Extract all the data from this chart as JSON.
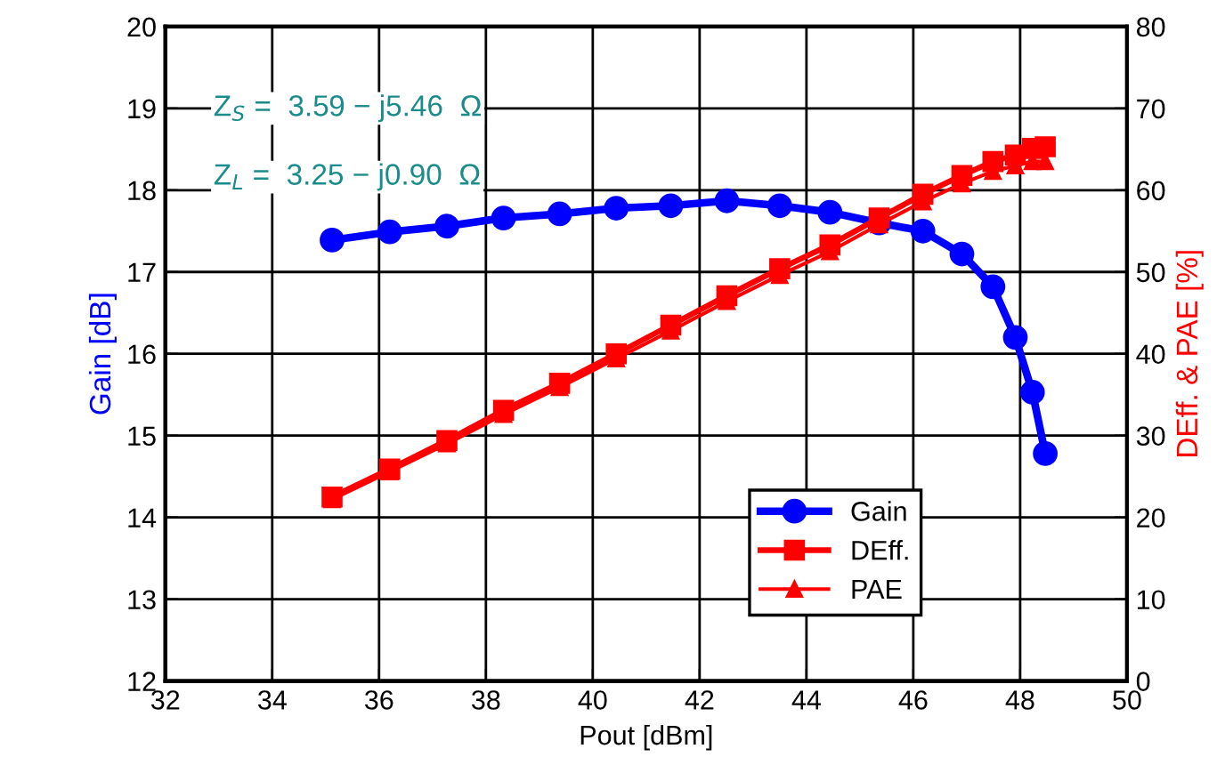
{
  "chart_data": {
    "type": "line",
    "xlabel": "Pout [dBm]",
    "ylabel": "Gain [dB]",
    "y2label": "DEff. & PAE [%]",
    "x": [
      35.12,
      36.2,
      37.27,
      38.33,
      39.38,
      40.44,
      41.46,
      42.51,
      43.5,
      44.44,
      45.36,
      46.18,
      46.91,
      47.49,
      47.91,
      48.23,
      48.47
    ],
    "series": [
      {
        "name": "Gain",
        "color": "#0000ff",
        "marker": "circle",
        "values": [
          17.39,
          17.49,
          17.56,
          17.66,
          17.71,
          17.78,
          17.81,
          17.87,
          17.81,
          17.73,
          17.6,
          17.5,
          17.22,
          16.82,
          16.2,
          15.53,
          14.78
        ]
      },
      {
        "name": "DEff.",
        "color": "#ff0000",
        "marker": "square",
        "axis": "y2",
        "values": [
          22.5,
          25.9,
          29.4,
          33.1,
          36.4,
          40.0,
          43.5,
          47.1,
          50.4,
          53.3,
          56.6,
          59.5,
          61.8,
          63.5,
          64.3,
          65.1,
          65.3
        ]
      },
      {
        "name": "PAE",
        "color": "#ff0000",
        "marker": "triangle",
        "axis": "y2",
        "values": [
          22.2,
          25.6,
          29.0,
          32.6,
          35.9,
          39.4,
          42.8,
          46.4,
          49.6,
          52.5,
          55.8,
          58.6,
          60.8,
          62.3,
          63.0,
          63.5,
          63.5
        ]
      }
    ],
    "xlim": [
      32,
      50
    ],
    "xticks": [
      32,
      34,
      36,
      38,
      40,
      42,
      44,
      46,
      48,
      50
    ],
    "ylim": [
      12,
      20
    ],
    "yticks": [
      12,
      13,
      14,
      15,
      16,
      17,
      18,
      19,
      20
    ],
    "y2lim": [
      0,
      80
    ],
    "y2ticks": [
      0,
      10,
      20,
      30,
      40,
      50,
      60,
      70,
      80
    ],
    "grid": true,
    "legend": "bottom right",
    "line_style": "solid",
    "annotations": [
      "Z$_{S}$ =  3.59 − j5.46  Ω",
      "Z$_{L}$ =  3.25 − j0.90  Ω"
    ]
  }
}
